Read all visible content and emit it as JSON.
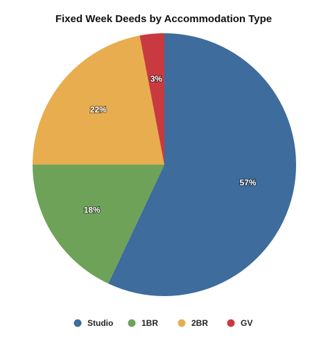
{
  "chart_data": {
    "type": "pie",
    "title": "Fixed Week Deeds by Accommodation Type",
    "categories": [
      "Studio",
      "1BR",
      "2BR",
      "GV"
    ],
    "values": [
      57,
      18,
      22,
      3
    ],
    "value_labels": [
      "57%",
      "18%",
      "22%",
      "3%"
    ],
    "colors": [
      "#3e6c9c",
      "#6ea259",
      "#e8ad4e",
      "#c93a40"
    ],
    "legend": "bottom"
  }
}
